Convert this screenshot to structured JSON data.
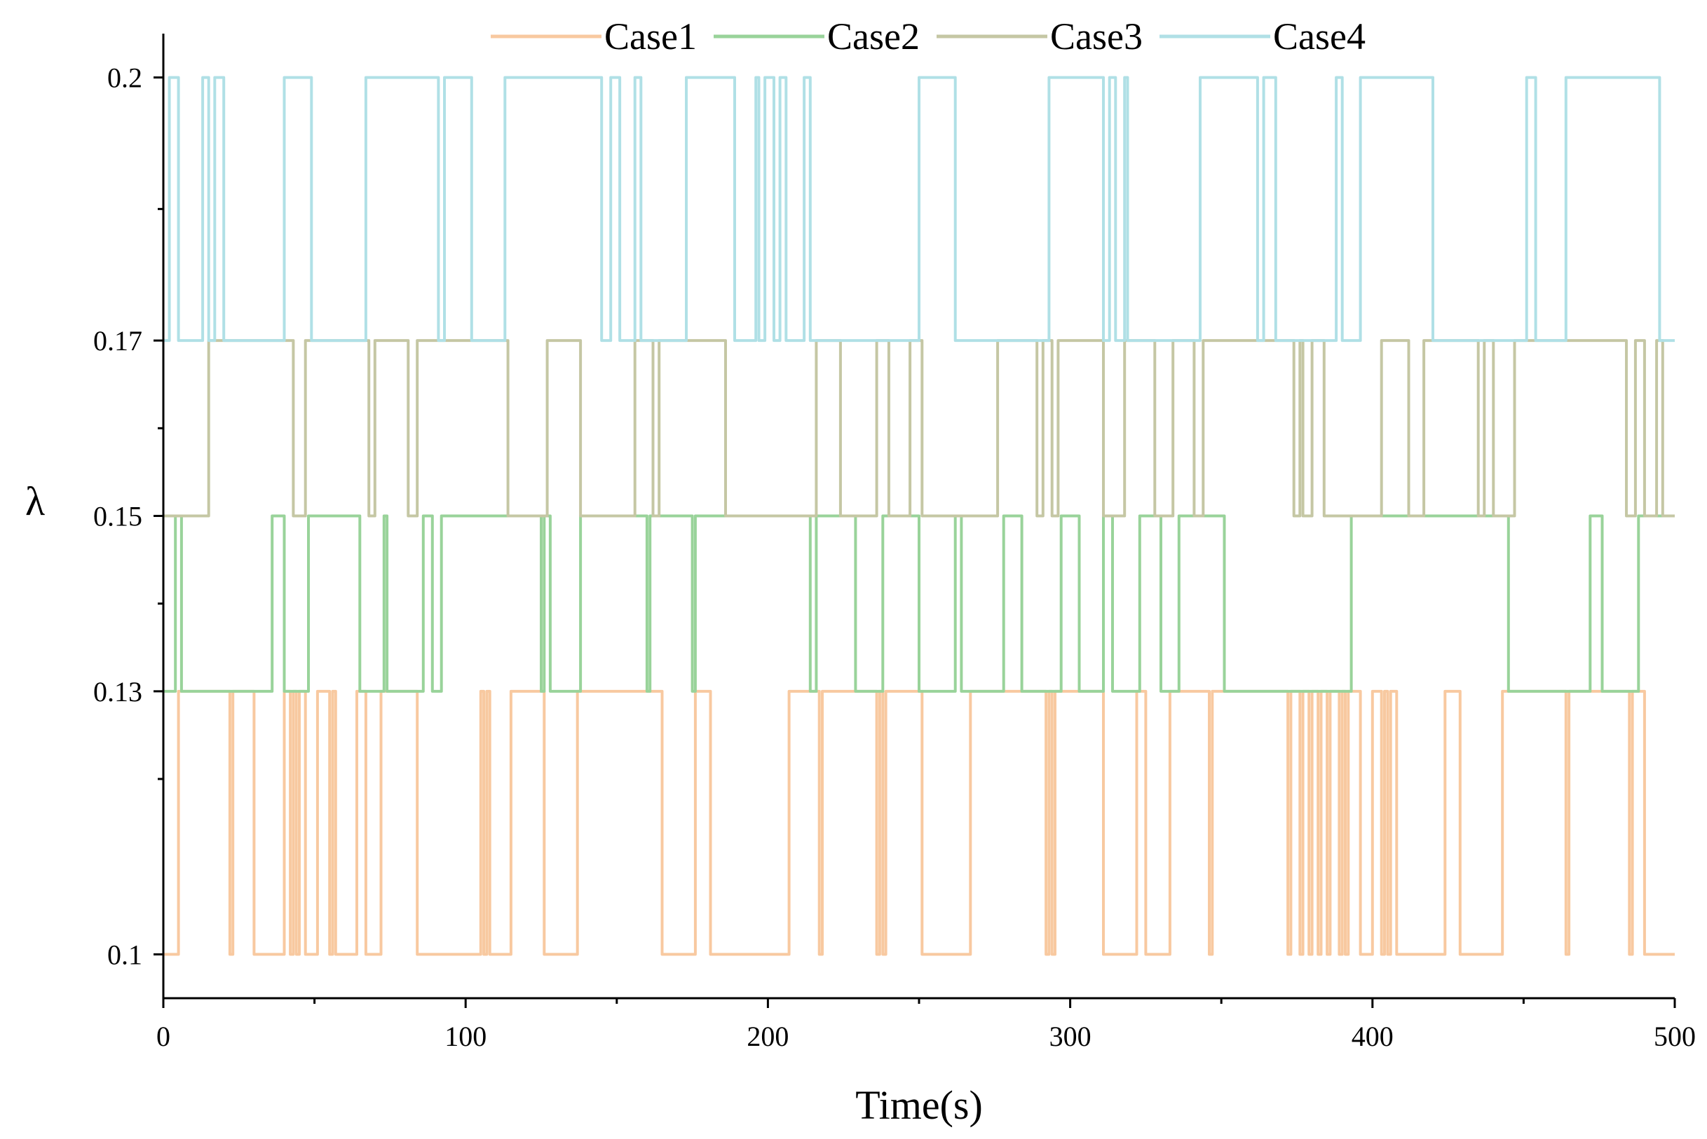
{
  "chart_data": {
    "type": "line",
    "title": "",
    "xlabel": "Time(s)",
    "ylabel": "λ",
    "xlim": [
      0,
      500
    ],
    "ylim": [
      0.095,
      0.205
    ],
    "x_ticks": [
      0,
      100,
      200,
      300,
      400,
      500
    ],
    "x_tick_labels": [
      "0",
      "100",
      "200",
      "300",
      "400",
      "500"
    ],
    "x_minor_ticks": [
      50,
      150,
      250,
      350,
      450
    ],
    "y_ticks": [
      0.1,
      0.13,
      0.15,
      0.17,
      0.2
    ],
    "y_tick_labels": [
      "0.1",
      "0.13",
      "0.15",
      "0.17",
      "0.2"
    ],
    "y_minor_ticks": [
      0.12,
      0.14,
      0.16,
      0.185
    ],
    "legend_position": "top-center",
    "series": [
      {
        "name": "Case1",
        "color": "#F8C9A0",
        "low": 0.1,
        "high": 0.13,
        "steps": [
          [
            0,
            0.1
          ],
          [
            5,
            0.13
          ],
          [
            22,
            0.1
          ],
          [
            23,
            0.13
          ],
          [
            30,
            0.1
          ],
          [
            40,
            0.13
          ],
          [
            42,
            0.1
          ],
          [
            43,
            0.13
          ],
          [
            44,
            0.1
          ],
          [
            45,
            0.13
          ],
          [
            47,
            0.1
          ],
          [
            51,
            0.13
          ],
          [
            55,
            0.1
          ],
          [
            56,
            0.13
          ],
          [
            57,
            0.1
          ],
          [
            64,
            0.13
          ],
          [
            67,
            0.1
          ],
          [
            72,
            0.13
          ],
          [
            84,
            0.1
          ],
          [
            105,
            0.13
          ],
          [
            106,
            0.1
          ],
          [
            107,
            0.13
          ],
          [
            108,
            0.1
          ],
          [
            115,
            0.13
          ],
          [
            126,
            0.1
          ],
          [
            137,
            0.13
          ],
          [
            165,
            0.1
          ],
          [
            176,
            0.13
          ],
          [
            181,
            0.1
          ],
          [
            207,
            0.13
          ],
          [
            217,
            0.1
          ],
          [
            218,
            0.13
          ],
          [
            236,
            0.1
          ],
          [
            237,
            0.13
          ],
          [
            238,
            0.1
          ],
          [
            239,
            0.13
          ],
          [
            251,
            0.1
          ],
          [
            267,
            0.13
          ],
          [
            292,
            0.1
          ],
          [
            293,
            0.13
          ],
          [
            294,
            0.1
          ],
          [
            295,
            0.13
          ],
          [
            311,
            0.1
          ],
          [
            322,
            0.13
          ],
          [
            325,
            0.1
          ],
          [
            333,
            0.13
          ],
          [
            346,
            0.1
          ],
          [
            347,
            0.13
          ],
          [
            372,
            0.1
          ],
          [
            373,
            0.13
          ],
          [
            376,
            0.1
          ],
          [
            377,
            0.13
          ],
          [
            379,
            0.1
          ],
          [
            380,
            0.13
          ],
          [
            382,
            0.1
          ],
          [
            383,
            0.13
          ],
          [
            385,
            0.1
          ],
          [
            386,
            0.13
          ],
          [
            389,
            0.1
          ],
          [
            390,
            0.13
          ],
          [
            391,
            0.1
          ],
          [
            392,
            0.13
          ],
          [
            396,
            0.1
          ],
          [
            400,
            0.13
          ],
          [
            403,
            0.1
          ],
          [
            404,
            0.13
          ],
          [
            405,
            0.1
          ],
          [
            406,
            0.13
          ],
          [
            408,
            0.1
          ],
          [
            424,
            0.13
          ],
          [
            429,
            0.1
          ],
          [
            443,
            0.13
          ],
          [
            464,
            0.1
          ],
          [
            465,
            0.13
          ],
          [
            485,
            0.1
          ],
          [
            486,
            0.13
          ],
          [
            490,
            0.1
          ],
          [
            500,
            0.1
          ]
        ]
      },
      {
        "name": "Case2",
        "color": "#99D39A",
        "low": 0.13,
        "high": 0.15,
        "steps": [
          [
            0,
            0.13
          ],
          [
            4,
            0.15
          ],
          [
            6,
            0.13
          ],
          [
            36,
            0.15
          ],
          [
            40,
            0.13
          ],
          [
            48,
            0.15
          ],
          [
            65,
            0.13
          ],
          [
            73,
            0.15
          ],
          [
            74,
            0.13
          ],
          [
            86,
            0.15
          ],
          [
            89,
            0.13
          ],
          [
            92,
            0.15
          ],
          [
            125,
            0.13
          ],
          [
            126,
            0.15
          ],
          [
            128,
            0.13
          ],
          [
            138,
            0.15
          ],
          [
            160,
            0.13
          ],
          [
            161,
            0.15
          ],
          [
            175,
            0.13
          ],
          [
            176,
            0.15
          ],
          [
            214,
            0.13
          ],
          [
            216,
            0.15
          ],
          [
            229,
            0.13
          ],
          [
            238,
            0.15
          ],
          [
            250,
            0.13
          ],
          [
            262,
            0.15
          ],
          [
            264,
            0.13
          ],
          [
            278,
            0.15
          ],
          [
            284,
            0.13
          ],
          [
            297,
            0.15
          ],
          [
            303,
            0.13
          ],
          [
            311,
            0.15
          ],
          [
            314,
            0.13
          ],
          [
            323,
            0.15
          ],
          [
            330,
            0.13
          ],
          [
            336,
            0.15
          ],
          [
            351,
            0.13
          ],
          [
            393,
            0.15
          ],
          [
            445,
            0.13
          ],
          [
            472,
            0.15
          ],
          [
            476,
            0.13
          ],
          [
            488,
            0.15
          ],
          [
            500,
            0.15
          ]
        ]
      },
      {
        "name": "Case3",
        "color": "#C5C7A4",
        "low": 0.15,
        "high": 0.17,
        "steps": [
          [
            0,
            0.15
          ],
          [
            15,
            0.17
          ],
          [
            43,
            0.15
          ],
          [
            47,
            0.17
          ],
          [
            68,
            0.15
          ],
          [
            70,
            0.17
          ],
          [
            81,
            0.15
          ],
          [
            84,
            0.17
          ],
          [
            114,
            0.15
          ],
          [
            127,
            0.17
          ],
          [
            138,
            0.15
          ],
          [
            156,
            0.17
          ],
          [
            162,
            0.15
          ],
          [
            164,
            0.17
          ],
          [
            186,
            0.15
          ],
          [
            216,
            0.17
          ],
          [
            224,
            0.15
          ],
          [
            236,
            0.17
          ],
          [
            240,
            0.15
          ],
          [
            247,
            0.17
          ],
          [
            251,
            0.15
          ],
          [
            276,
            0.17
          ],
          [
            289,
            0.15
          ],
          [
            291,
            0.17
          ],
          [
            294,
            0.15
          ],
          [
            296,
            0.17
          ],
          [
            311,
            0.15
          ],
          [
            318,
            0.17
          ],
          [
            328,
            0.15
          ],
          [
            334,
            0.17
          ],
          [
            341,
            0.15
          ],
          [
            344,
            0.17
          ],
          [
            374,
            0.15
          ],
          [
            376,
            0.17
          ],
          [
            377,
            0.15
          ],
          [
            380,
            0.17
          ],
          [
            384,
            0.15
          ],
          [
            403,
            0.17
          ],
          [
            412,
            0.15
          ],
          [
            417,
            0.17
          ],
          [
            435,
            0.15
          ],
          [
            437,
            0.17
          ],
          [
            440,
            0.15
          ],
          [
            447,
            0.17
          ],
          [
            484,
            0.15
          ],
          [
            487,
            0.17
          ],
          [
            490,
            0.15
          ],
          [
            494,
            0.17
          ],
          [
            496,
            0.15
          ],
          [
            500,
            0.15
          ]
        ]
      },
      {
        "name": "Case4",
        "color": "#B0E0E6",
        "low": 0.17,
        "high": 0.2,
        "steps": [
          [
            0,
            0.17
          ],
          [
            2,
            0.2
          ],
          [
            5,
            0.17
          ],
          [
            13,
            0.2
          ],
          [
            15,
            0.17
          ],
          [
            17,
            0.2
          ],
          [
            20,
            0.17
          ],
          [
            40,
            0.2
          ],
          [
            49,
            0.17
          ],
          [
            67,
            0.2
          ],
          [
            91,
            0.17
          ],
          [
            93,
            0.2
          ],
          [
            102,
            0.17
          ],
          [
            113,
            0.2
          ],
          [
            145,
            0.17
          ],
          [
            148,
            0.2
          ],
          [
            151,
            0.17
          ],
          [
            156,
            0.2
          ],
          [
            158,
            0.17
          ],
          [
            173,
            0.2
          ],
          [
            189,
            0.17
          ],
          [
            196,
            0.2
          ],
          [
            197,
            0.17
          ],
          [
            199,
            0.2
          ],
          [
            202,
            0.17
          ],
          [
            204,
            0.2
          ],
          [
            206,
            0.17
          ],
          [
            212,
            0.2
          ],
          [
            214,
            0.17
          ],
          [
            250,
            0.2
          ],
          [
            262,
            0.17
          ],
          [
            293,
            0.2
          ],
          [
            311,
            0.17
          ],
          [
            313,
            0.2
          ],
          [
            315,
            0.17
          ],
          [
            318,
            0.2
          ],
          [
            319,
            0.17
          ],
          [
            343,
            0.2
          ],
          [
            362,
            0.17
          ],
          [
            364,
            0.2
          ],
          [
            368,
            0.17
          ],
          [
            388,
            0.2
          ],
          [
            390,
            0.17
          ],
          [
            396,
            0.2
          ],
          [
            420,
            0.17
          ],
          [
            451,
            0.2
          ],
          [
            454,
            0.17
          ],
          [
            464,
            0.2
          ],
          [
            495,
            0.17
          ],
          [
            500,
            0.17
          ]
        ]
      }
    ]
  }
}
